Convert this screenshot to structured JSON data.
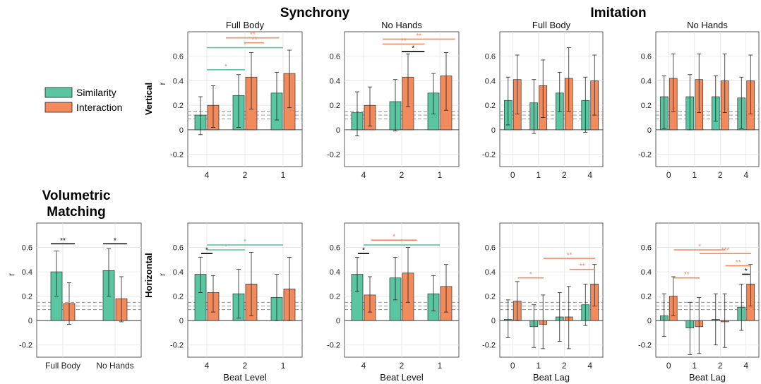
{
  "headings": {
    "synchrony": "Synchrony",
    "imitation": "Imitation",
    "volumetric_line1": "Volumetric",
    "volumetric_line2": "Matching",
    "row_vertical": "Vertical",
    "row_horizontal": "Horizontal"
  },
  "legend": {
    "items": [
      {
        "label": "Similarity",
        "color": "#59c6a1"
      },
      {
        "label": "Interaction",
        "color": "#f28a5b"
      }
    ]
  },
  "colors": {
    "similarity": "#59c6a1",
    "interaction": "#f28a5b",
    "sig_black": "#000000"
  },
  "chart_data": [
    {
      "id": "sync-full-vertical",
      "type": "bar",
      "title": "Full Body",
      "ylabel": "r",
      "xlabel": "",
      "categories": [
        "4",
        "2",
        "1"
      ],
      "ylim": [
        -0.3,
        0.8
      ],
      "yticks": [
        -0.2,
        0,
        0.2,
        0.4,
        0.6
      ],
      "series": [
        {
          "name": "Similarity",
          "values": [
            0.12,
            0.28,
            0.3
          ],
          "err_low": [
            -0.04,
            0.02,
            0.08
          ],
          "err_high": [
            0.27,
            0.45,
            0.47
          ]
        },
        {
          "name": "Interaction",
          "values": [
            0.2,
            0.43,
            0.46
          ],
          "err_low": [
            0.02,
            0.17,
            0.18
          ],
          "err_high": [
            0.36,
            0.63,
            0.65
          ]
        }
      ],
      "thresholds": [
        0.09,
        0.12,
        0.15
      ],
      "sig": [
        {
          "y": 0.49,
          "from": 0,
          "to": 1,
          "label": "*",
          "color": "similarity"
        },
        {
          "y": 0.67,
          "from": 0,
          "to": 2,
          "label": "*",
          "color": "similarity"
        },
        {
          "y": 0.71,
          "from": 1,
          "to": 1.5,
          "label": "**",
          "color": "interaction"
        },
        {
          "y": 0.75,
          "from": 0.5,
          "to": 1.9,
          "label": "**",
          "color": "interaction"
        }
      ]
    },
    {
      "id": "sync-nohands-vertical",
      "type": "bar",
      "title": "No Hands",
      "ylabel": "",
      "xlabel": "",
      "categories": [
        "4",
        "2",
        "1"
      ],
      "ylim": [
        -0.3,
        0.8
      ],
      "yticks": [
        -0.2,
        0,
        0.2,
        0.4,
        0.6
      ],
      "series": [
        {
          "name": "Similarity",
          "values": [
            0.14,
            0.23,
            0.3
          ],
          "err_low": [
            -0.05,
            -0.01,
            0.13
          ],
          "err_high": [
            0.31,
            0.41,
            0.46
          ]
        },
        {
          "name": "Interaction",
          "values": [
            0.2,
            0.43,
            0.44
          ],
          "err_low": [
            0.03,
            0.19,
            0.16
          ],
          "err_high": [
            0.35,
            0.62,
            0.63
          ]
        }
      ],
      "thresholds": [
        0.09,
        0.12,
        0.15
      ],
      "sig": [
        {
          "y": 0.64,
          "from": 1,
          "to": 1.6,
          "label": "*",
          "color": "sig_black"
        },
        {
          "y": 0.7,
          "from": 0.5,
          "to": 1.6,
          "label": "**",
          "color": "interaction"
        },
        {
          "y": 0.74,
          "from": 0.5,
          "to": 2.4,
          "label": "**",
          "color": "interaction"
        }
      ]
    },
    {
      "id": "imit-full-vertical",
      "type": "bar",
      "title": "Full Body",
      "ylabel": "",
      "xlabel": "",
      "categories": [
        "0",
        "1",
        "2",
        "4"
      ],
      "ylim": [
        -0.3,
        0.8
      ],
      "yticks": [
        -0.2,
        0,
        0.2,
        0.4,
        0.6
      ],
      "series": [
        {
          "name": "Similarity",
          "values": [
            0.24,
            0.22,
            0.3,
            0.24
          ],
          "err_low": [
            0.04,
            -0.03,
            0.15,
            -0.02
          ],
          "err_high": [
            0.43,
            0.41,
            0.47,
            0.43
          ]
        },
        {
          "name": "Interaction",
          "values": [
            0.41,
            0.36,
            0.42,
            0.4
          ],
          "err_low": [
            0.13,
            0.1,
            0.15,
            0.12
          ],
          "err_high": [
            0.61,
            0.57,
            0.67,
            0.61
          ]
        }
      ],
      "thresholds": [
        0.09,
        0.12,
        0.15
      ],
      "sig": []
    },
    {
      "id": "imit-nohands-vertical",
      "type": "bar",
      "title": "No Hands",
      "ylabel": "",
      "xlabel": "",
      "categories": [
        "0",
        "1",
        "2",
        "4"
      ],
      "ylim": [
        -0.3,
        0.8
      ],
      "yticks": [
        -0.2,
        0,
        0.2,
        0.4,
        0.6
      ],
      "series": [
        {
          "name": "Similarity",
          "values": [
            0.27,
            0.27,
            0.27,
            0.26
          ],
          "err_low": [
            0.01,
            0.0,
            0.07,
            0.01
          ],
          "err_high": [
            0.44,
            0.45,
            0.44,
            0.43
          ]
        },
        {
          "name": "Interaction",
          "values": [
            0.42,
            0.41,
            0.4,
            0.4
          ],
          "err_low": [
            0.15,
            0.14,
            0.14,
            0.13
          ],
          "err_high": [
            0.62,
            0.62,
            0.62,
            0.61
          ]
        }
      ],
      "thresholds": [
        0.09,
        0.12,
        0.15
      ],
      "sig": []
    },
    {
      "id": "vol-matching",
      "type": "bar",
      "title": "",
      "ylabel": "r",
      "xlabel": "",
      "categories": [
        "Full Body",
        "No Hands"
      ],
      "ylim": [
        -0.3,
        0.8
      ],
      "yticks": [
        -0.2,
        0,
        0.2,
        0.4,
        0.6
      ],
      "series": [
        {
          "name": "Similarity",
          "values": [
            0.4,
            0.41
          ],
          "err_low": [
            0.2,
            0.2
          ],
          "err_high": [
            0.57,
            0.59
          ]
        },
        {
          "name": "Interaction",
          "values": [
            0.14,
            0.18
          ],
          "err_low": [
            -0.03,
            -0.01
          ],
          "err_high": [
            0.31,
            0.36
          ]
        }
      ],
      "thresholds": [
        0.09,
        0.12,
        0.15
      ],
      "sig": [
        {
          "y": 0.63,
          "from": 0,
          "to": 0,
          "label": "**",
          "color": "sig_black"
        },
        {
          "y": 0.63,
          "from": 1,
          "to": 1,
          "label": "*",
          "color": "sig_black"
        }
      ]
    },
    {
      "id": "sync-full-horizontal",
      "type": "bar",
      "title": "",
      "ylabel": "r",
      "xlabel": "Beat Level",
      "categories": [
        "4",
        "2",
        "1"
      ],
      "ylim": [
        -0.3,
        0.8
      ],
      "yticks": [
        -0.2,
        0,
        0.2,
        0.4,
        0.6
      ],
      "series": [
        {
          "name": "Similarity",
          "values": [
            0.38,
            0.22,
            0.19
          ],
          "err_low": [
            0.23,
            0.02,
            0.0
          ],
          "err_high": [
            0.52,
            0.42,
            0.38
          ]
        },
        {
          "name": "Interaction",
          "values": [
            0.23,
            0.3,
            0.26
          ],
          "err_low": [
            0.07,
            0.04,
            0.0
          ],
          "err_high": [
            0.37,
            0.56,
            0.52
          ]
        }
      ],
      "thresholds": [
        0.09,
        0.12,
        0.15
      ],
      "sig": [
        {
          "y": 0.55,
          "from": -0.15,
          "to": 0.15,
          "label": "*",
          "color": "sig_black"
        },
        {
          "y": 0.58,
          "from": 0,
          "to": 1,
          "label": "*",
          "color": "similarity"
        },
        {
          "y": 0.62,
          "from": 0,
          "to": 2,
          "label": "*",
          "color": "similarity"
        }
      ]
    },
    {
      "id": "sync-nohands-horizontal",
      "type": "bar",
      "title": "",
      "ylabel": "",
      "xlabel": "Beat Level",
      "categories": [
        "4",
        "2",
        "1"
      ],
      "ylim": [
        -0.3,
        0.8
      ],
      "yticks": [
        -0.2,
        0,
        0.2,
        0.4,
        0.6
      ],
      "series": [
        {
          "name": "Similarity",
          "values": [
            0.38,
            0.35,
            0.22
          ],
          "err_low": [
            0.24,
            0.17,
            0.08
          ],
          "err_high": [
            0.52,
            0.52,
            0.37
          ]
        },
        {
          "name": "Interaction",
          "values": [
            0.21,
            0.39,
            0.28
          ],
          "err_low": [
            0.07,
            0.15,
            0.07
          ],
          "err_high": [
            0.36,
            0.6,
            0.46
          ]
        }
      ],
      "thresholds": [
        0.09,
        0.12,
        0.15
      ],
      "sig": [
        {
          "y": 0.55,
          "from": -0.15,
          "to": 0.15,
          "label": "*",
          "color": "sig_black"
        },
        {
          "y": 0.62,
          "from": 0,
          "to": 2,
          "label": "*",
          "color": "similarity"
        },
        {
          "y": 0.66,
          "from": 0.2,
          "to": 1.4,
          "label": "*",
          "color": "interaction"
        }
      ]
    },
    {
      "id": "imit-full-horizontal",
      "type": "bar",
      "title": "",
      "ylabel": "",
      "xlabel": "Beat Lag",
      "categories": [
        "0",
        "1",
        "2",
        "4"
      ],
      "ylim": [
        -0.3,
        0.8
      ],
      "yticks": [
        -0.2,
        0,
        0.2,
        0.4,
        0.6
      ],
      "series": [
        {
          "name": "Similarity",
          "values": [
            0.01,
            -0.05,
            0.03,
            0.13
          ],
          "err_low": [
            -0.14,
            -0.22,
            -0.17,
            -0.04
          ],
          "err_high": [
            0.17,
            0.13,
            0.23,
            0.3
          ]
        },
        {
          "name": "Interaction",
          "values": [
            0.16,
            -0.03,
            0.03,
            0.3
          ],
          "err_low": [
            0.0,
            -0.23,
            -0.23,
            0.12
          ],
          "err_high": [
            0.32,
            0.21,
            0.28,
            0.46
          ]
        }
      ],
      "thresholds": [
        0.09,
        0.12,
        0.15
      ],
      "sig": [
        {
          "y": 0.35,
          "from": 0.2,
          "to": 1.2,
          "label": "*",
          "color": "interaction"
        },
        {
          "y": 0.42,
          "from": 2.2,
          "to": 3.2,
          "label": "**",
          "color": "interaction"
        },
        {
          "y": 0.51,
          "from": 1.2,
          "to": 3.2,
          "label": "**",
          "color": "interaction"
        }
      ]
    },
    {
      "id": "imit-nohands-horizontal",
      "type": "bar",
      "title": "",
      "ylabel": "",
      "xlabel": "Beat Lag",
      "categories": [
        "0",
        "1",
        "2",
        "4"
      ],
      "ylim": [
        -0.3,
        0.8
      ],
      "yticks": [
        -0.2,
        0,
        0.2,
        0.4,
        0.6
      ],
      "series": [
        {
          "name": "Similarity",
          "values": [
            0.04,
            -0.06,
            0.01,
            0.11
          ],
          "err_low": [
            -0.13,
            -0.28,
            -0.2,
            -0.08
          ],
          "err_high": [
            0.22,
            0.15,
            0.22,
            0.3
          ]
        },
        {
          "name": "Interaction",
          "values": [
            0.2,
            -0.05,
            -0.01,
            0.3
          ],
          "err_low": [
            0.04,
            -0.27,
            -0.22,
            0.12
          ],
          "err_high": [
            0.36,
            0.19,
            0.22,
            0.46
          ]
        }
      ],
      "thresholds": [
        0.09,
        0.12,
        0.15
      ],
      "sig": [
        {
          "y": 0.38,
          "from": 2.85,
          "to": 3.15,
          "label": "*",
          "color": "sig_black"
        },
        {
          "y": 0.45,
          "from": 2.2,
          "to": 3.2,
          "label": "**",
          "color": "interaction"
        },
        {
          "y": 0.55,
          "from": 1.2,
          "to": 3.2,
          "label": "***",
          "color": "interaction"
        },
        {
          "y": 0.58,
          "from": 0.2,
          "to": 2.2,
          "label": "*",
          "color": "interaction"
        },
        {
          "y": 0.35,
          "from": 0.2,
          "to": 1.2,
          "label": "**",
          "color": "interaction"
        }
      ]
    }
  ]
}
